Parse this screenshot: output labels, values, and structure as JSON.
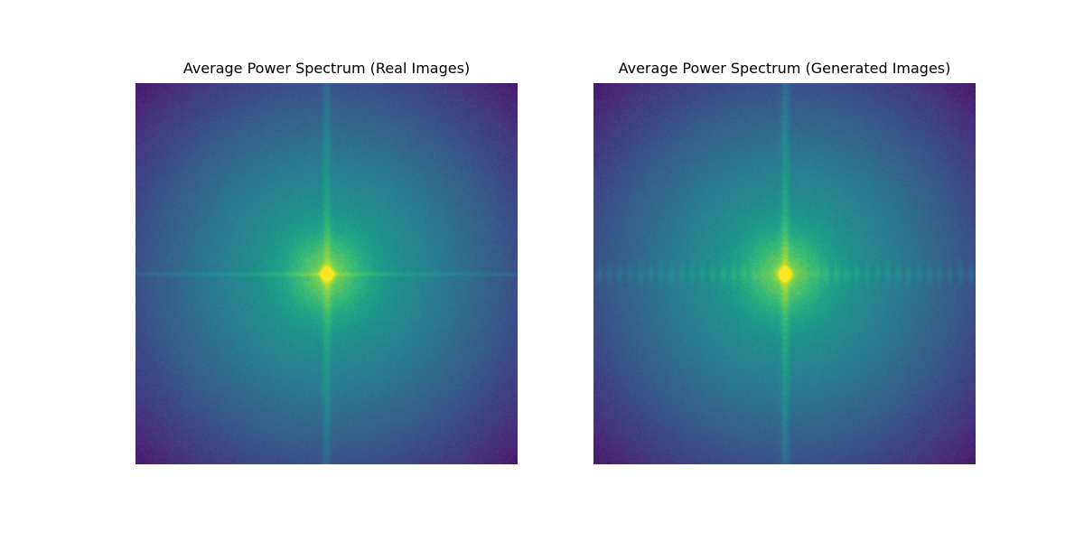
{
  "chart_data": [
    {
      "type": "heatmap",
      "title": "Average Power Spectrum (Real Images)",
      "colormap": "viridis",
      "axes_visible": false,
      "colorbar": false,
      "features": {
        "center_peak": "bright yellow",
        "cross_artifacts": "horizontal and vertical lines through center"
      }
    },
    {
      "type": "heatmap",
      "title": "Average Power Spectrum (Generated Images)",
      "colormap": "viridis",
      "axes_visible": false,
      "colorbar": false,
      "features": {
        "center_peak": "bright yellow",
        "cross_artifacts": "vertical line through center with periodic blobs along horizontal axis"
      }
    }
  ]
}
